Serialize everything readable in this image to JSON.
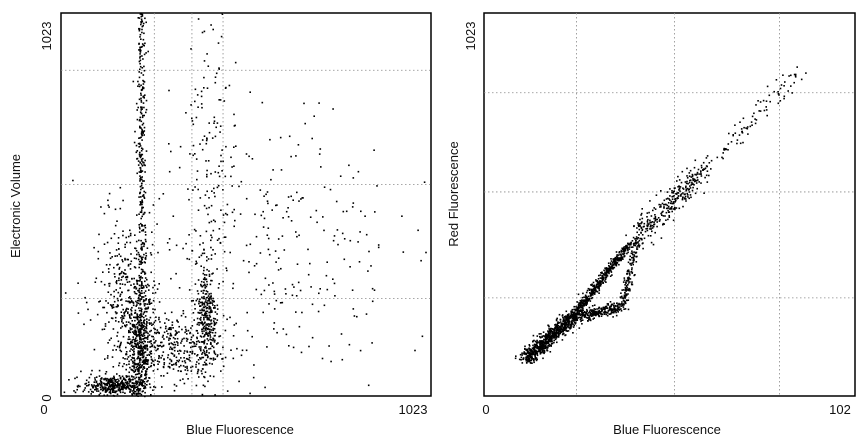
{
  "chart_data": [
    {
      "type": "scatter",
      "title": "",
      "xlabel": "Blue Fluorescence",
      "ylabel": "Electronic Volume",
      "xlim": [
        0,
        1023
      ],
      "ylim": [
        0,
        1023
      ],
      "x_ticks": [
        "0",
        "1023"
      ],
      "y_ticks": [
        "0",
        "1023"
      ],
      "grid": "dotted, 3 vertical and 3 horizontal lines",
      "point_color": "#000000",
      "clusters": [
        {
          "label": "",
          "center": [
            215,
            120
          ],
          "spread": [
            18,
            90
          ],
          "count": 500
        },
        {
          "label": "",
          "center": [
            220,
            620
          ],
          "spread": [
            6,
            380
          ],
          "count": 450
        },
        {
          "label": "",
          "center": [
            180,
            260
          ],
          "spread": [
            45,
            110
          ],
          "count": 350
        },
        {
          "label": "",
          "center": [
            140,
            30
          ],
          "spread": [
            40,
            12
          ],
          "count": 350
        },
        {
          "label": "",
          "center": [
            400,
            220
          ],
          "spread": [
            14,
            70
          ],
          "count": 300
        },
        {
          "label": "",
          "center": [
            300,
            130
          ],
          "spread": [
            70,
            45
          ],
          "count": 350
        },
        {
          "label": "",
          "center": [
            410,
            700
          ],
          "spread": [
            28,
            300
          ],
          "count": 150
        },
        {
          "label": "",
          "center": [
            560,
            400
          ],
          "spread": [
            180,
            200
          ],
          "count": 330
        }
      ]
    },
    {
      "type": "scatter",
      "title": "",
      "xlabel": "Blue Fluorescence",
      "ylabel": "Red Fluorescence",
      "xlim": [
        0,
        1023
      ],
      "ylim": [
        0,
        1023
      ],
      "x_ticks": [
        "0",
        "102"
      ],
      "y_ticks": [
        "1023"
      ],
      "grid": "dotted, 3 vertical and 3 horizontal lines",
      "point_color": "#000000",
      "segments": [
        {
          "label": "",
          "from": [
            110,
            100
          ],
          "to": [
            240,
            210
          ],
          "spread": 10,
          "count": 700
        },
        {
          "label": "",
          "from": [
            240,
            210
          ],
          "to": [
            400,
            410
          ],
          "spread": 6,
          "count": 500
        },
        {
          "label": "",
          "from": [
            240,
            210
          ],
          "to": [
            380,
            240
          ],
          "spread": 8,
          "count": 280
        },
        {
          "label": "",
          "from": [
            380,
            240
          ],
          "to": [
            420,
            420
          ],
          "spread": 6,
          "count": 160
        },
        {
          "label": "",
          "from": [
            420,
            430
          ],
          "to": [
            610,
            610
          ],
          "spread": 16,
          "count": 300
        },
        {
          "label": "",
          "from": [
            610,
            610
          ],
          "to": [
            870,
            870
          ],
          "spread": 14,
          "count": 90
        }
      ]
    }
  ]
}
